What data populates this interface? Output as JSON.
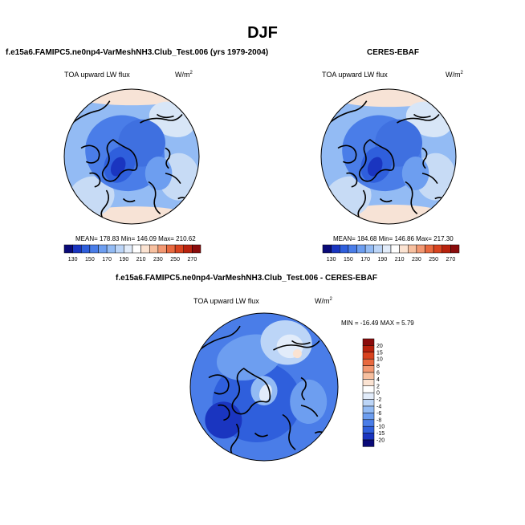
{
  "title": "DJF",
  "panels": {
    "model": {
      "title": "f.e15a6.FAMIPC5.ne0np4-VarMeshNH3.Club_Test.006 (yrs 1979-2004)",
      "field": "TOA upward LW flux",
      "units": "W/m",
      "units_sup": "2",
      "stats": "MEAN= 178.83  Min= 146.09  Max= 210.62"
    },
    "obs": {
      "title": "CERES-EBAF",
      "field": "TOA upward LW flux",
      "units": "W/m",
      "units_sup": "2",
      "stats": "MEAN= 184.68  Min= 146.86  Max= 217.30"
    },
    "diff": {
      "title": "f.e15a6.FAMIPC5.ne0np4-VarMeshNH3.Club_Test.006 - CERES-EBAF",
      "field": "TOA upward LW flux",
      "units": "W/m",
      "units_sup": "2",
      "stats": "MIN = -16.49 MAX =  5.79"
    }
  },
  "chart_data": [
    {
      "type": "heatmap",
      "title": "f.e15a6.FAMIPC5.ne0np4-VarMeshNH3.Club_Test.006 (yrs 1979-2004)",
      "variable": "TOA upward LW flux",
      "units": "W/m2",
      "projection": "north polar stereographic",
      "stats": {
        "mean": 178.83,
        "min": 146.09,
        "max": 210.62
      },
      "colorbar": {
        "tick_labels": [
          "130",
          "150",
          "170",
          "190",
          "210",
          "230",
          "250",
          "270"
        ],
        "colors": [
          "#0a0a78",
          "#1a35c0",
          "#2f5fdc",
          "#4a7de8",
          "#6d9ef0",
          "#93bbf4",
          "#bcd5f7",
          "#e2ecfa",
          "#ffffff",
          "#fbe3d2",
          "#f7c0a0",
          "#f39872",
          "#e8693f",
          "#d8431f",
          "#b8220e",
          "#8a0c0c"
        ]
      }
    },
    {
      "type": "heatmap",
      "title": "CERES-EBAF",
      "variable": "TOA upward LW flux",
      "units": "W/m2",
      "projection": "north polar stereographic",
      "stats": {
        "mean": 184.68,
        "min": 146.86,
        "max": 217.3
      },
      "colorbar": {
        "tick_labels": [
          "130",
          "150",
          "170",
          "190",
          "210",
          "230",
          "250",
          "270"
        ],
        "colors": [
          "#0a0a78",
          "#1a35c0",
          "#2f5fdc",
          "#4a7de8",
          "#6d9ef0",
          "#93bbf4",
          "#bcd5f7",
          "#e2ecfa",
          "#ffffff",
          "#fbe3d2",
          "#f7c0a0",
          "#f39872",
          "#e8693f",
          "#d8431f",
          "#b8220e",
          "#8a0c0c"
        ]
      }
    },
    {
      "type": "heatmap",
      "title": "f.e15a6.FAMIPC5.ne0np4-VarMeshNH3.Club_Test.006 - CERES-EBAF",
      "variable": "TOA upward LW flux",
      "units": "W/m2",
      "projection": "north polar stereographic",
      "stats": {
        "min": -16.49,
        "max": 5.79
      },
      "colorbar": {
        "tick_labels": [
          "20",
          "15",
          "10",
          "8",
          "6",
          "4",
          "2",
          "0",
          "-2",
          "-4",
          "-6",
          "-8",
          "-10",
          "-15",
          "-20"
        ],
        "colors": [
          "#8a0c0c",
          "#b8220e",
          "#d8431f",
          "#e8693f",
          "#f39872",
          "#f7c0a0",
          "#fbe3d2",
          "#ffffff",
          "#e2ecfa",
          "#bcd5f7",
          "#93bbf4",
          "#6d9ef0",
          "#4a7de8",
          "#2f5fdc",
          "#1a35c0",
          "#0a0a78"
        ]
      }
    }
  ]
}
